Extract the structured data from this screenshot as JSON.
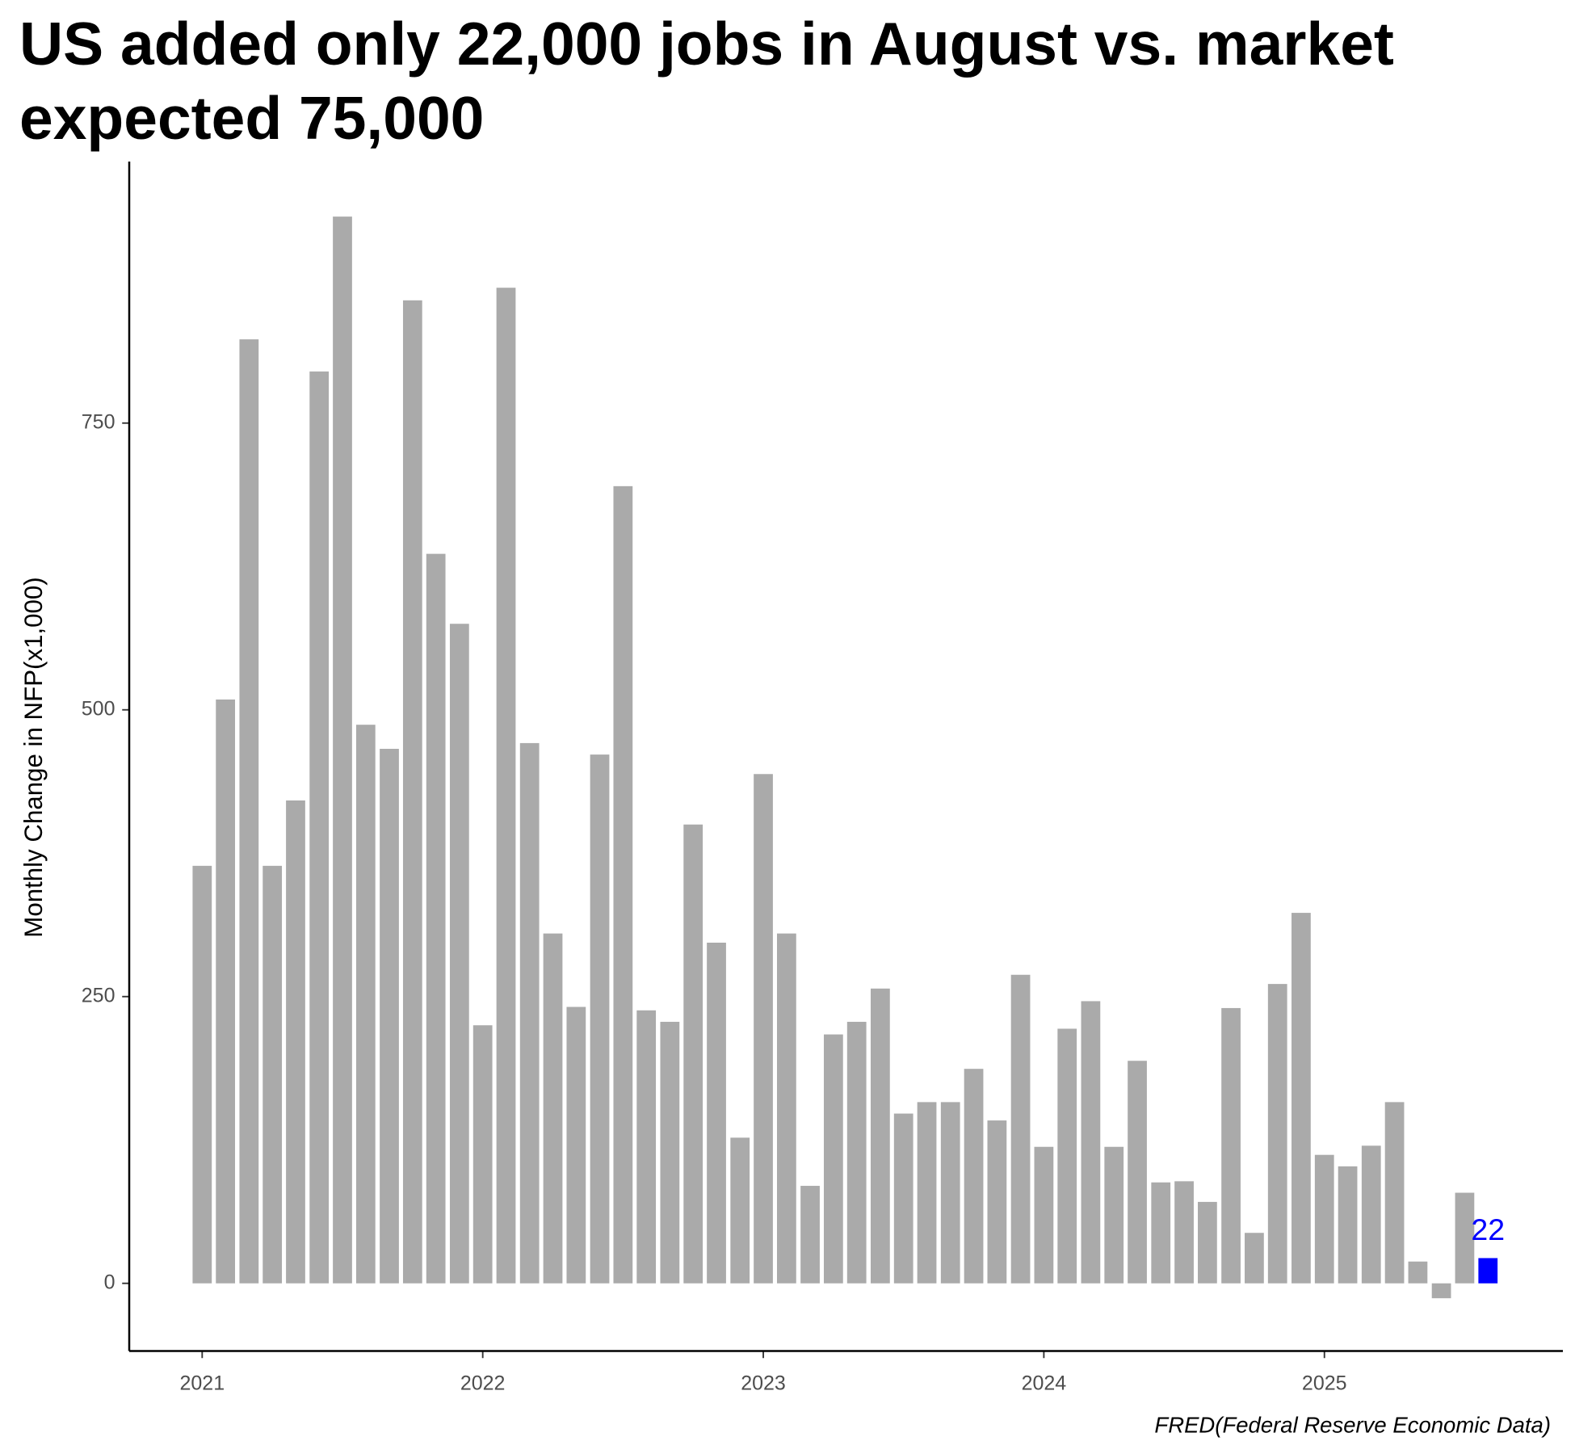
{
  "chart_data": {
    "type": "bar",
    "title": "US added only 22,000 jobs in August vs. market expected 75,000",
    "y_label": "Monthly Change in NFP(x1,000)",
    "caption": "FRED(Federal Reserve Economic Data)",
    "x": [
      2021.0,
      2021.083,
      2021.167,
      2021.25,
      2021.333,
      2021.417,
      2021.5,
      2021.583,
      2021.667,
      2021.75,
      2021.833,
      2021.917,
      2022.0,
      2022.083,
      2022.167,
      2022.25,
      2022.333,
      2022.417,
      2022.5,
      2022.583,
      2022.667,
      2022.75,
      2022.833,
      2022.917,
      2023.0,
      2023.083,
      2023.167,
      2023.25,
      2023.333,
      2023.417,
      2023.5,
      2023.583,
      2023.667,
      2023.75,
      2023.833,
      2023.917,
      2024.0,
      2024.083,
      2024.167,
      2024.25,
      2024.333,
      2024.417,
      2024.5,
      2024.583,
      2024.667,
      2024.75,
      2024.833,
      2024.917,
      2025.0,
      2025.083,
      2025.167,
      2025.25,
      2025.333,
      2025.417,
      2025.5,
      2025.583
    ],
    "values": [
      364,
      509,
      823,
      364,
      421,
      795,
      930,
      487,
      466,
      857,
      636,
      575,
      225,
      868,
      471,
      305,
      241,
      461,
      695,
      238,
      228,
      400,
      297,
      127,
      444,
      305,
      85,
      217,
      228,
      257,
      148,
      158,
      158,
      187,
      142,
      269,
      119,
      222,
      246,
      119,
      194,
      88,
      89,
      71,
      240,
      44,
      261,
      323,
      112,
      102,
      120,
      158,
      19,
      -13,
      79,
      22
    ],
    "value_labels": [
      null,
      null,
      null,
      null,
      null,
      null,
      null,
      null,
      null,
      null,
      null,
      null,
      null,
      null,
      null,
      null,
      null,
      null,
      null,
      null,
      null,
      null,
      null,
      null,
      null,
      null,
      null,
      null,
      null,
      null,
      null,
      null,
      null,
      null,
      null,
      null,
      null,
      null,
      null,
      null,
      null,
      null,
      null,
      null,
      null,
      null,
      null,
      null,
      null,
      null,
      null,
      null,
      null,
      null,
      null,
      "22"
    ],
    "colors": [
      "#aaaaaa",
      "#aaaaaa",
      "#aaaaaa",
      "#aaaaaa",
      "#aaaaaa",
      "#aaaaaa",
      "#aaaaaa",
      "#aaaaaa",
      "#aaaaaa",
      "#aaaaaa",
      "#aaaaaa",
      "#aaaaaa",
      "#aaaaaa",
      "#aaaaaa",
      "#aaaaaa",
      "#aaaaaa",
      "#aaaaaa",
      "#aaaaaa",
      "#aaaaaa",
      "#aaaaaa",
      "#aaaaaa",
      "#aaaaaa",
      "#aaaaaa",
      "#aaaaaa",
      "#aaaaaa",
      "#aaaaaa",
      "#aaaaaa",
      "#aaaaaa",
      "#aaaaaa",
      "#aaaaaa",
      "#aaaaaa",
      "#aaaaaa",
      "#aaaaaa",
      "#aaaaaa",
      "#aaaaaa",
      "#aaaaaa",
      "#aaaaaa",
      "#aaaaaa",
      "#aaaaaa",
      "#aaaaaa",
      "#aaaaaa",
      "#aaaaaa",
      "#aaaaaa",
      "#aaaaaa",
      "#aaaaaa",
      "#aaaaaa",
      "#aaaaaa",
      "#aaaaaa",
      "#aaaaaa",
      "#aaaaaa",
      "#aaaaaa",
      "#aaaaaa",
      "#aaaaaa",
      "#aaaaaa",
      "#aaaaaa",
      "#0000ff"
    ],
    "xlim": [
      2020.74,
      2025.85
    ],
    "xticks": [
      2021,
      2022,
      2023,
      2024,
      2025
    ],
    "ylim": [
      -59,
      978
    ],
    "yticks": [
      0,
      250,
      500,
      750
    ],
    "grid": false
  }
}
